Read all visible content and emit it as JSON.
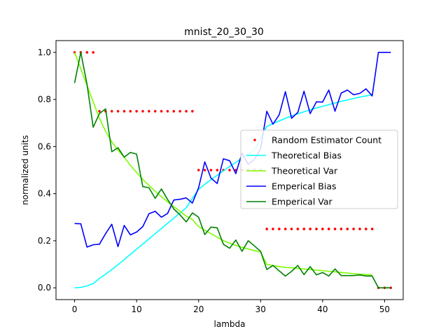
{
  "chart_data": {
    "type": "line",
    "title": "mnist_20_30_30",
    "xlabel": "lambda",
    "ylabel": "normalized units",
    "xlim": [
      -3,
      53
    ],
    "ylim": [
      -0.05,
      1.05
    ],
    "xticks": [
      0,
      10,
      20,
      30,
      40,
      50
    ],
    "yticks": [
      0.0,
      0.2,
      0.4,
      0.6,
      0.8,
      1.0
    ],
    "xtick_labels": [
      "0",
      "10",
      "20",
      "30",
      "40",
      "50"
    ],
    "ytick_labels": [
      "0.0",
      "0.2",
      "0.4",
      "0.6",
      "0.8",
      "1.0"
    ],
    "legend_position": "center-right",
    "series": [
      {
        "name": "Random Estimator Count",
        "kind": "scatter",
        "color": "#ff0000",
        "x": [
          0,
          1,
          2,
          3,
          4,
          5,
          6,
          7,
          8,
          9,
          10,
          11,
          12,
          13,
          14,
          15,
          16,
          17,
          18,
          19,
          20,
          21,
          22,
          23,
          24,
          25,
          26,
          27,
          28,
          29,
          30,
          31,
          32,
          33,
          34,
          35,
          36,
          37,
          38,
          39,
          40,
          41,
          42,
          43,
          44,
          45,
          46,
          47,
          48,
          49,
          50,
          51
        ],
        "values": [
          1.0,
          1.0,
          1.0,
          1.0,
          0.75,
          0.75,
          0.75,
          0.75,
          0.75,
          0.75,
          0.75,
          0.75,
          0.75,
          0.75,
          0.75,
          0.75,
          0.75,
          0.75,
          0.75,
          0.75,
          0.5,
          0.5,
          0.5,
          0.5,
          0.5,
          0.5,
          0.5,
          0.5,
          0.5,
          0.5,
          0.5,
          0.25,
          0.25,
          0.25,
          0.25,
          0.25,
          0.25,
          0.25,
          0.25,
          0.25,
          0.25,
          0.25,
          0.25,
          0.25,
          0.25,
          0.25,
          0.25,
          0.25,
          0.25,
          0.0,
          0.0,
          0.0
        ]
      },
      {
        "name": "Theoretical Bias",
        "kind": "line",
        "color": "#00ffff",
        "x": [
          0,
          1,
          2,
          3,
          4,
          5,
          6,
          7,
          8,
          9,
          10,
          11,
          12,
          13,
          14,
          15,
          16,
          17,
          18,
          19,
          20,
          21,
          22,
          23,
          24,
          25,
          26,
          27,
          28,
          29,
          30,
          31,
          32,
          33,
          34,
          35,
          36,
          37,
          38,
          39,
          40,
          41,
          42,
          43,
          44,
          45,
          46,
          47,
          48
        ],
        "values": [
          0.0,
          0.002,
          0.008,
          0.018,
          0.04,
          0.058,
          0.078,
          0.098,
          0.12,
          0.142,
          0.164,
          0.186,
          0.208,
          0.23,
          0.252,
          0.274,
          0.296,
          0.318,
          0.34,
          0.38,
          0.418,
          0.44,
          0.46,
          0.478,
          0.497,
          0.515,
          0.533,
          0.551,
          0.568,
          0.585,
          0.635,
          0.685,
          0.698,
          0.709,
          0.72,
          0.73,
          0.739,
          0.748,
          0.756,
          0.764,
          0.771,
          0.778,
          0.785,
          0.792,
          0.798,
          0.804,
          0.81,
          0.815,
          0.82
        ]
      },
      {
        "name": "Theoretical Var",
        "kind": "line",
        "color": "#7cfc00",
        "x": [
          0,
          1,
          2,
          3,
          4,
          5,
          6,
          7,
          8,
          9,
          10,
          11,
          12,
          13,
          14,
          15,
          16,
          17,
          18,
          19,
          20,
          21,
          22,
          23,
          24,
          25,
          26,
          27,
          28,
          29,
          30,
          31,
          32,
          33,
          34,
          35,
          36,
          37,
          38,
          39,
          40,
          41,
          42,
          43,
          44,
          45,
          46,
          47,
          48
        ],
        "values": [
          1.0,
          0.93,
          0.86,
          0.79,
          0.72,
          0.665,
          0.62,
          0.585,
          0.555,
          0.52,
          0.49,
          0.46,
          0.435,
          0.41,
          0.387,
          0.365,
          0.345,
          0.325,
          0.305,
          0.29,
          0.26,
          0.245,
          0.23,
          0.215,
          0.2,
          0.19,
          0.18,
          0.172,
          0.165,
          0.158,
          0.152,
          0.1,
          0.095,
          0.09,
          0.087,
          0.085,
          0.082,
          0.08,
          0.078,
          0.075,
          0.073,
          0.07,
          0.068,
          0.065,
          0.063,
          0.06,
          0.058,
          0.056,
          0.055
        ]
      },
      {
        "name": "Emperical Bias",
        "kind": "line",
        "color": "#0000ff",
        "x": [
          0,
          1,
          2,
          3,
          4,
          5,
          6,
          7,
          8,
          9,
          10,
          11,
          12,
          13,
          14,
          15,
          16,
          17,
          18,
          19,
          20,
          21,
          22,
          23,
          24,
          25,
          26,
          27,
          28,
          29,
          30,
          31,
          32,
          33,
          34,
          35,
          36,
          37,
          38,
          39,
          40,
          41,
          42,
          43,
          44,
          45,
          46,
          47,
          48,
          49,
          50,
          51
        ],
        "values": [
          0.273,
          0.272,
          0.173,
          0.183,
          0.185,
          0.23,
          0.27,
          0.175,
          0.265,
          0.225,
          0.237,
          0.26,
          0.315,
          0.325,
          0.3,
          0.316,
          0.373,
          0.376,
          0.382,
          0.36,
          0.425,
          0.535,
          0.466,
          0.443,
          0.548,
          0.54,
          0.485,
          0.572,
          0.525,
          0.545,
          0.59,
          0.75,
          0.695,
          0.735,
          0.833,
          0.72,
          0.745,
          0.835,
          0.74,
          0.79,
          0.789,
          0.84,
          0.75,
          0.827,
          0.84,
          0.82,
          0.826,
          0.845,
          0.815,
          1.0,
          1.0,
          1.0
        ]
      },
      {
        "name": "Emperical Var",
        "kind": "line",
        "color": "#008000",
        "x": [
          0,
          1,
          2,
          3,
          4,
          5,
          6,
          7,
          8,
          9,
          10,
          11,
          12,
          13,
          14,
          15,
          16,
          17,
          18,
          19,
          20,
          21,
          22,
          23,
          24,
          25,
          26,
          27,
          28,
          29,
          30,
          31,
          32,
          33,
          34,
          35,
          36,
          37,
          38,
          39,
          40,
          41,
          42,
          43,
          44,
          45,
          46,
          47,
          48,
          49,
          50,
          51
        ],
        "values": [
          0.87,
          1.0,
          0.865,
          0.682,
          0.74,
          0.76,
          0.578,
          0.595,
          0.555,
          0.575,
          0.568,
          0.43,
          0.425,
          0.38,
          0.42,
          0.375,
          0.335,
          0.31,
          0.28,
          0.318,
          0.3,
          0.226,
          0.258,
          0.255,
          0.185,
          0.168,
          0.203,
          0.155,
          0.2,
          0.178,
          0.155,
          0.078,
          0.095,
          0.072,
          0.05,
          0.07,
          0.095,
          0.056,
          0.09,
          0.055,
          0.065,
          0.05,
          0.08,
          0.052,
          0.052,
          0.052,
          0.055,
          0.05,
          0.05,
          0.0,
          0.0,
          0.0
        ]
      }
    ]
  }
}
